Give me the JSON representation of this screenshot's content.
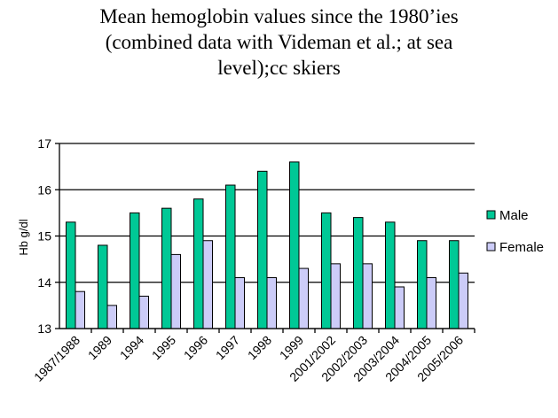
{
  "chart_data": {
    "type": "bar",
    "title_lines": [
      "Mean hemoglobin values since the 1980’ies",
      "(combined data with Videman et al.; at sea",
      "level);cc skiers"
    ],
    "xlabel": "",
    "ylabel": "Hb g/dl",
    "ylim": [
      13,
      17
    ],
    "yticks": [
      "13",
      "14",
      "15",
      "16",
      "17"
    ],
    "grid": true,
    "legend_position": "right",
    "categories": [
      "1987/1988",
      "1989",
      "1994",
      "1995",
      "1996",
      "1997",
      "1998",
      "1999",
      "2001/2002",
      "2002/2003",
      "2003/2004",
      "2004/2005",
      "2005/2006"
    ],
    "series": [
      {
        "name": "Male",
        "color": "#00C896",
        "values": [
          15.3,
          14.8,
          15.5,
          15.6,
          15.8,
          16.1,
          16.4,
          16.6,
          15.5,
          15.4,
          15.3,
          14.9,
          14.9
        ]
      },
      {
        "name": "Female",
        "color": "#CCCCF8",
        "values": [
          13.8,
          13.5,
          13.7,
          14.6,
          14.9,
          14.1,
          14.1,
          14.3,
          14.4,
          14.4,
          13.9,
          14.1,
          14.2
        ]
      }
    ]
  }
}
